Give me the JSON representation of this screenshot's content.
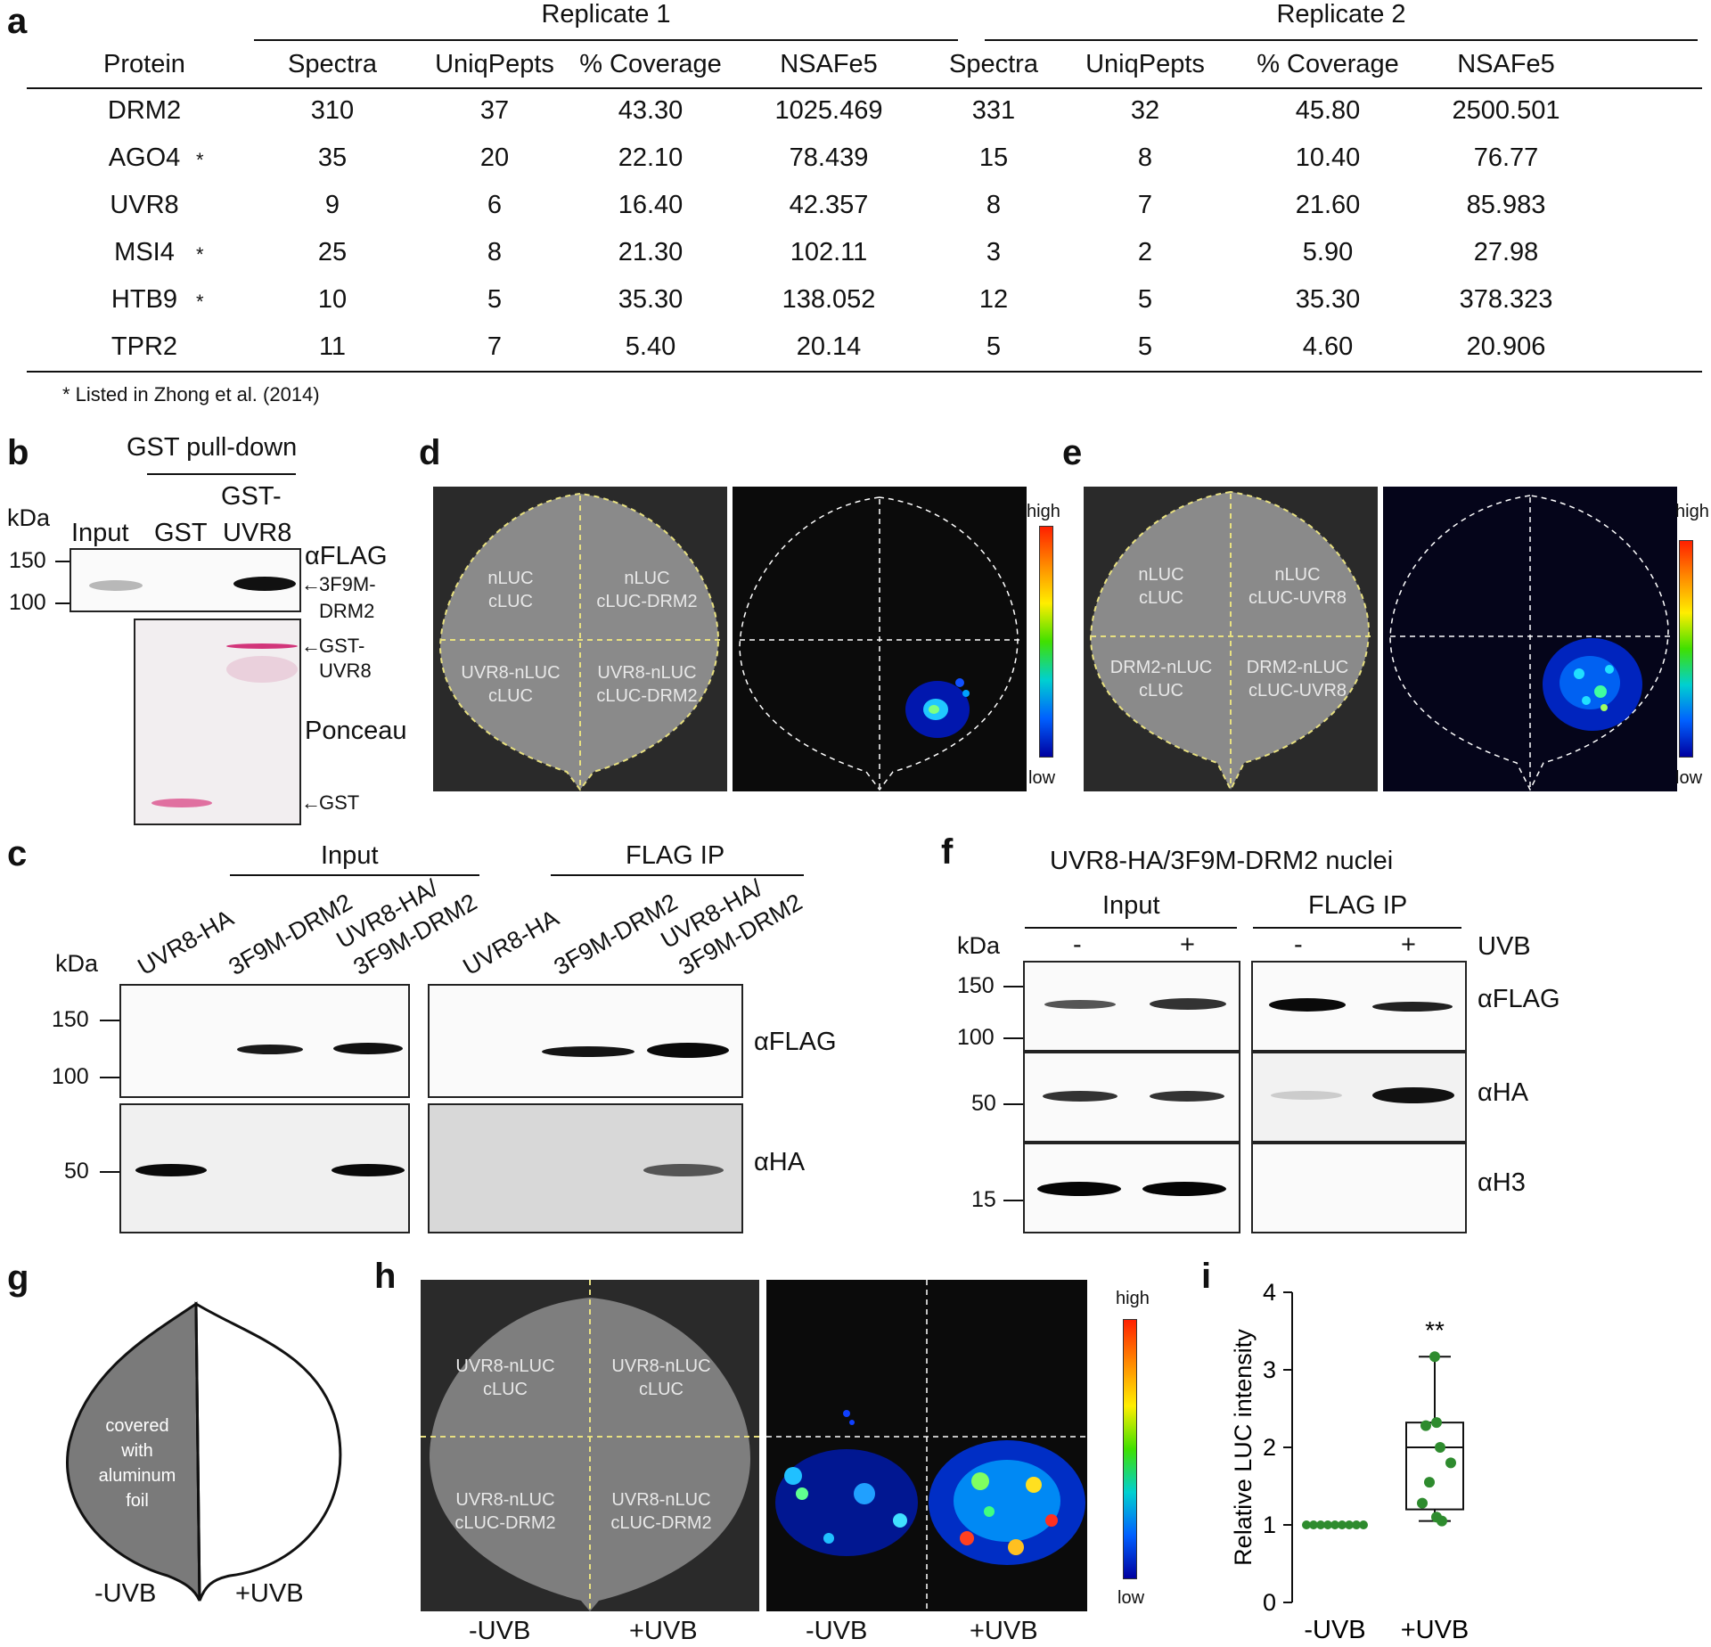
{
  "panels": {
    "a": "a",
    "b": "b",
    "c": "c",
    "d": "d",
    "e": "e",
    "f": "f",
    "g": "g",
    "h": "h",
    "i": "i"
  },
  "table": {
    "replicate1": "Replicate 1",
    "replicate2": "Replicate 2",
    "headers": [
      "Protein",
      "Spectra",
      "UniqPepts",
      "% Coverage",
      "NSAFe5",
      "Spectra",
      "UniqPepts",
      "% Coverage",
      "NSAFe5"
    ],
    "rows": [
      {
        "protein": "DRM2",
        "star": "",
        "r1": [
          "310",
          "37",
          "43.30",
          "1025.469"
        ],
        "r2": [
          "331",
          "32",
          "45.80",
          "2500.501"
        ]
      },
      {
        "protein": "AGO4",
        "star": "*",
        "r1": [
          "35",
          "20",
          "22.10",
          "78.439"
        ],
        "r2": [
          "15",
          "8",
          "10.40",
          "76.77"
        ]
      },
      {
        "protein": "UVR8",
        "star": "",
        "r1": [
          "9",
          "6",
          "16.40",
          "42.357"
        ],
        "r2": [
          "8",
          "7",
          "21.60",
          "85.983"
        ]
      },
      {
        "protein": "MSI4",
        "star": "*",
        "r1": [
          "25",
          "8",
          "21.30",
          "102.11"
        ],
        "r2": [
          "3",
          "2",
          "5.90",
          "27.98"
        ]
      },
      {
        "protein": "HTB9",
        "star": "*",
        "r1": [
          "10",
          "5",
          "35.30",
          "138.052"
        ],
        "r2": [
          "12",
          "5",
          "35.30",
          "378.323"
        ]
      },
      {
        "protein": "TPR2",
        "star": "",
        "r1": [
          "11",
          "7",
          "5.40",
          "20.14"
        ],
        "r2": [
          "5",
          "5",
          "4.60",
          "20.906"
        ]
      }
    ],
    "footnote": "* Listed in Zhong et al. (2014)"
  },
  "b": {
    "title": "GST pull-down",
    "kda": "kDa",
    "lanes": [
      "Input",
      "GST",
      "GST-",
      "UVR8"
    ],
    "ticks": [
      "150",
      "100"
    ],
    "antibody": "αFLAG",
    "band1_a": "3F9M-",
    "band1_b": "DRM2",
    "band2_a": "GST-",
    "band2_b": "UVR8",
    "ponceau": "Ponceau",
    "band3": "GST"
  },
  "c": {
    "input": "Input",
    "flagip": "FLAG IP",
    "kda": "kDa",
    "lanes": [
      "UVR8-HA",
      "3F9M-DRM2",
      "UVR8-HA/",
      "3F9M-DRM2"
    ],
    "ticks": [
      "150",
      "100",
      "50"
    ],
    "ab1": "αFLAG",
    "ab2": "αHA"
  },
  "d": {
    "labels": [
      "nLUC",
      "cLUC",
      "nLUC",
      "cLUC-DRM2",
      "UVR8-nLUC",
      "cLUC",
      "UVR8-nLUC",
      "cLUC-DRM2"
    ],
    "high": "high",
    "low": "low"
  },
  "e": {
    "labels": [
      "nLUC",
      "cLUC",
      "nLUC",
      "cLUC-UVR8",
      "DRM2-nLUC",
      "cLUC",
      "DRM2-nLUC",
      "cLUC-UVR8"
    ],
    "high": "high",
    "low": "low"
  },
  "f": {
    "title": "UVR8-HA/3F9M-DRM2 nuclei",
    "input": "Input",
    "flagip": "FLAG IP",
    "kda": "kDa",
    "minus": "-",
    "plus": "+",
    "uvb": "UVB",
    "ticks": [
      "150",
      "100",
      "50",
      "15"
    ],
    "ab1": "αFLAG",
    "ab2": "αHA",
    "ab3": "αH3"
  },
  "g": {
    "covered": [
      "covered",
      "with",
      "aluminum",
      "foil"
    ],
    "minus": "-UVB",
    "plus": "+UVB"
  },
  "h": {
    "labels": [
      "UVR8-nLUC",
      "cLUC",
      "UVR8-nLUC",
      "cLUC",
      "UVR8-nLUC",
      "cLUC-DRM2",
      "UVR8-nLUC",
      "cLUC-DRM2"
    ],
    "high": "high",
    "low": "low",
    "x": [
      "-UVB",
      "+UVB",
      "-UVB",
      "+UVB"
    ]
  },
  "chart_data": {
    "type": "scatter",
    "title": "",
    "ylabel": "Relative LUC intensity",
    "xlabel": "",
    "categories": [
      "-UVB",
      "+UVB"
    ],
    "ylim": [
      0,
      4
    ],
    "yticks": [
      "0",
      "1",
      "2",
      "3",
      "4"
    ],
    "annotation": "**",
    "series": [
      {
        "values": [
          1,
          1,
          1,
          1,
          1,
          1,
          1,
          1,
          1
        ]
      },
      {
        "values": [
          3.17,
          2.32,
          2.28,
          2.0,
          1.8,
          1.55,
          1.28,
          1.1,
          1.05
        ]
      }
    ],
    "box": {
      "min": 1.05,
      "q1": 1.2,
      "median": 2.0,
      "q3": 2.32,
      "max": 3.17
    },
    "point_color": "#2e8b2e"
  }
}
